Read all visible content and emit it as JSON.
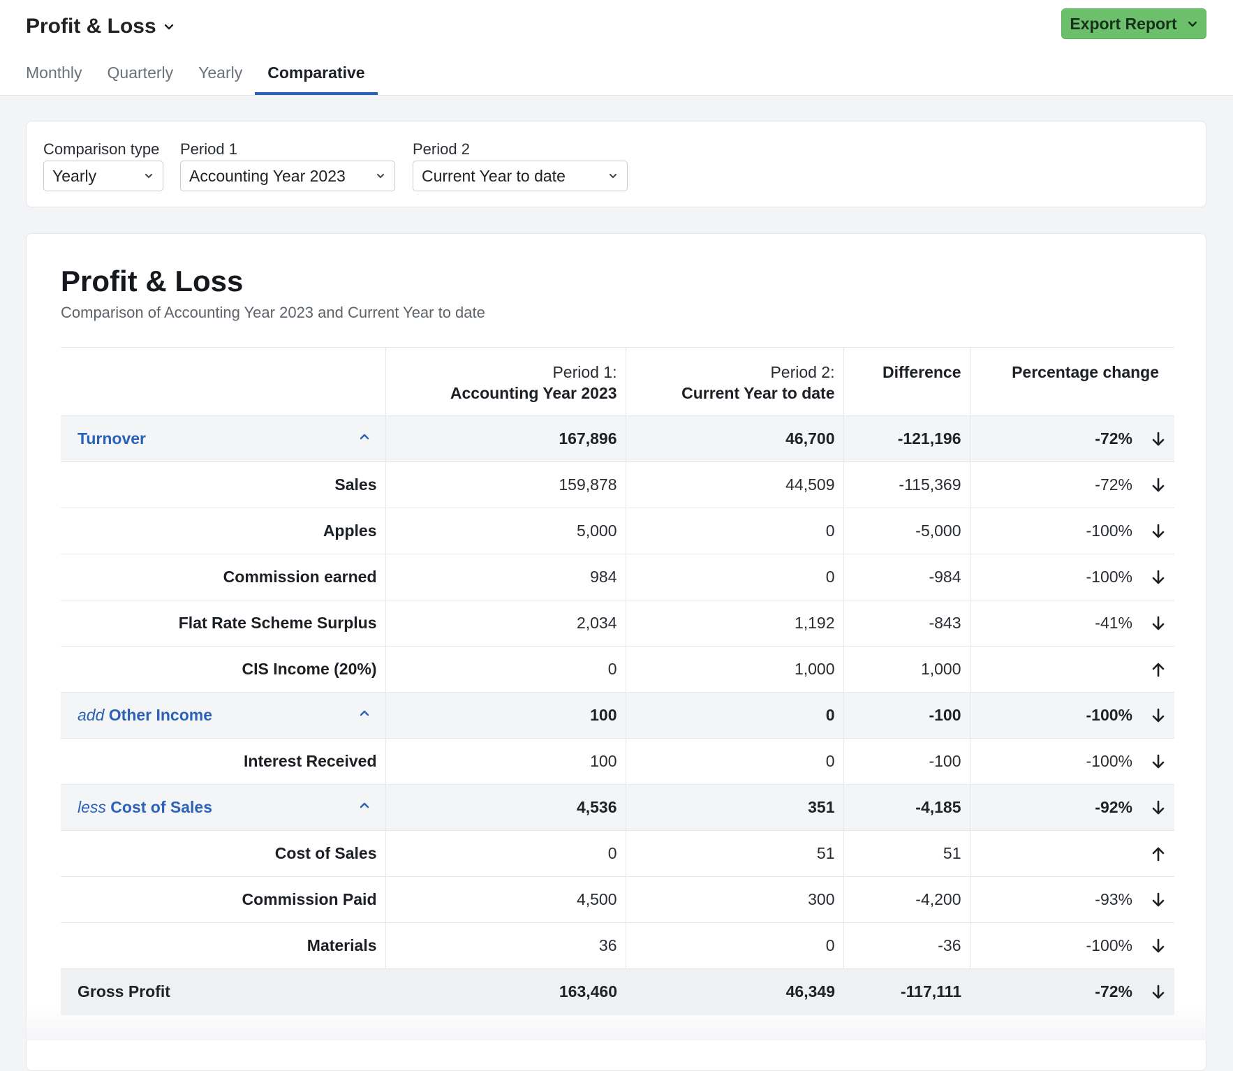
{
  "header": {
    "title": "Profit & Loss",
    "export_label": "Export Report",
    "tabs": [
      {
        "label": "Monthly"
      },
      {
        "label": "Quarterly"
      },
      {
        "label": "Yearly"
      },
      {
        "label": "Comparative"
      }
    ],
    "active_tab": "Comparative"
  },
  "filters": {
    "comparison_type": {
      "label": "Comparison type",
      "value": "Yearly"
    },
    "period1": {
      "label": "Period 1",
      "value": "Accounting Year 2023"
    },
    "period2": {
      "label": "Period 2",
      "value": "Current Year to date"
    }
  },
  "report": {
    "title": "Profit & Loss",
    "subtitle": "Comparison of Accounting Year 2023 and Current Year to date",
    "columns": {
      "period1_line1": "Period 1:",
      "period1_line2": "Accounting Year 2023",
      "period2_line1": "Period 2:",
      "period2_line2": "Current Year to date",
      "difference": "Difference",
      "percentage": "Percentage change"
    },
    "rows": [
      {
        "type": "section",
        "prefix": "",
        "label": "Turnover",
        "p1": "167,896",
        "p2": "46,700",
        "diff": "-121,196",
        "pct": "-72%",
        "dir": "down"
      },
      {
        "type": "item",
        "label": "Sales",
        "p1": "159,878",
        "p2": "44,509",
        "diff": "-115,369",
        "pct": "-72%",
        "dir": "down"
      },
      {
        "type": "item",
        "label": "Apples",
        "p1": "5,000",
        "p2": "0",
        "diff": "-5,000",
        "pct": "-100%",
        "dir": "down"
      },
      {
        "type": "item",
        "label": "Commission earned",
        "p1": "984",
        "p2": "0",
        "diff": "-984",
        "pct": "-100%",
        "dir": "down"
      },
      {
        "type": "item",
        "label": "Flat Rate Scheme Surplus",
        "p1": "2,034",
        "p2": "1,192",
        "diff": "-843",
        "pct": "-41%",
        "dir": "down"
      },
      {
        "type": "item",
        "label": "CIS Income (20%)",
        "p1": "0",
        "p2": "1,000",
        "diff": "1,000",
        "pct": "",
        "dir": "up"
      },
      {
        "type": "section",
        "prefix": "add",
        "label": "Other Income",
        "p1": "100",
        "p2": "0",
        "diff": "-100",
        "pct": "-100%",
        "dir": "down"
      },
      {
        "type": "item",
        "label": "Interest Received",
        "p1": "100",
        "p2": "0",
        "diff": "-100",
        "pct": "-100%",
        "dir": "down"
      },
      {
        "type": "section",
        "prefix": "less",
        "label": "Cost of Sales",
        "p1": "4,536",
        "p2": "351",
        "diff": "-4,185",
        "pct": "-92%",
        "dir": "down"
      },
      {
        "type": "item",
        "label": "Cost of Sales",
        "p1": "0",
        "p2": "51",
        "diff": "51",
        "pct": "",
        "dir": "up"
      },
      {
        "type": "item",
        "label": "Commission Paid",
        "p1": "4,500",
        "p2": "300",
        "diff": "-4,200",
        "pct": "-93%",
        "dir": "down"
      },
      {
        "type": "item",
        "label": "Materials",
        "p1": "36",
        "p2": "0",
        "diff": "-36",
        "pct": "-100%",
        "dir": "down"
      },
      {
        "type": "total",
        "label": "Gross Profit",
        "p1": "163,460",
        "p2": "46,349",
        "diff": "-117,111",
        "pct": "-72%",
        "dir": "down"
      }
    ]
  },
  "colors": {
    "accent": "#2b62b8",
    "export_button": "#6cc06c",
    "section_bg": "#f4f5f7"
  },
  "icons": {
    "title_dropdown": "chevron-down-icon",
    "export_dropdown": "chevron-down-icon",
    "select": "chevron-down-icon",
    "collapse": "chevron-up-icon",
    "trend_down": "arrow-down-icon",
    "trend_up": "arrow-up-icon"
  }
}
